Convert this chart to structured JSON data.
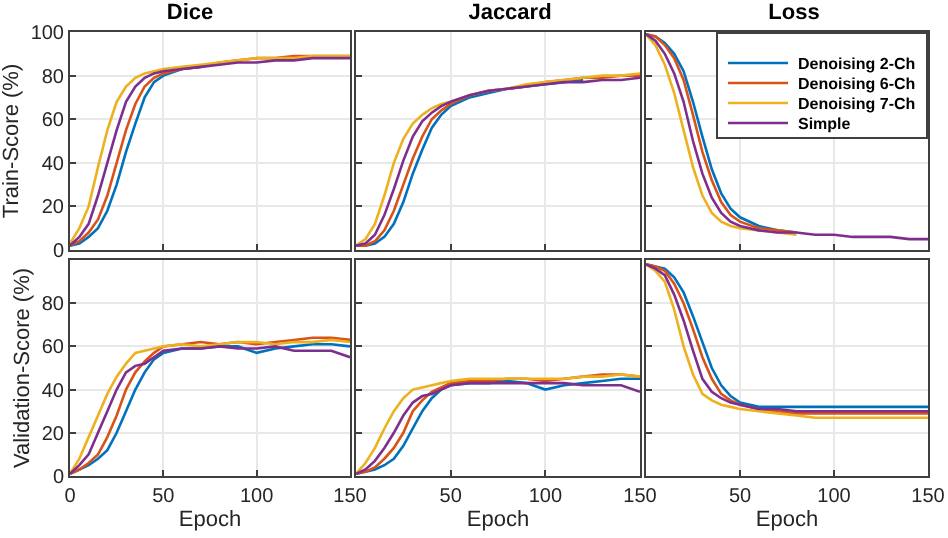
{
  "chart_data": [
    {
      "type": "line",
      "title": "Dice",
      "ylabel": "Train-Score (%)",
      "x": [
        0,
        5,
        10,
        15,
        20,
        25,
        30,
        35,
        40,
        45,
        50,
        60,
        70,
        80,
        90,
        100,
        110,
        120,
        130,
        140,
        150
      ],
      "xlim": [
        0,
        150
      ],
      "ylim": [
        0,
        100
      ],
      "xticks": [
        0,
        50,
        100,
        150
      ],
      "yticks": [
        0,
        20,
        40,
        60,
        80,
        100
      ],
      "tick_labels": "y",
      "grid": true,
      "legend": false,
      "marker": "none",
      "line_style": "solid",
      "series": [
        {
          "color": "#0072bd",
          "values": [
            2,
            3,
            6,
            10,
            18,
            30,
            45,
            58,
            70,
            77,
            80,
            83,
            84,
            null,
            null,
            null,
            null,
            null,
            null,
            null,
            null
          ]
        },
        {
          "color": "#d95319",
          "values": [
            2,
            4,
            8,
            14,
            25,
            40,
            55,
            67,
            75,
            79,
            81,
            83,
            84,
            86,
            87,
            88,
            88,
            89,
            89,
            89,
            89
          ]
        },
        {
          "color": "#edb120",
          "values": [
            3,
            10,
            20,
            38,
            55,
            68,
            75,
            79,
            81,
            82,
            83,
            84,
            85,
            86,
            87,
            88,
            88,
            88,
            89,
            89,
            89
          ]
        },
        {
          "color": "#7e2f8e",
          "values": [
            2,
            6,
            12,
            25,
            40,
            55,
            68,
            75,
            79,
            81,
            82,
            83,
            84,
            85,
            86,
            86,
            87,
            87,
            88,
            88,
            88
          ]
        }
      ]
    },
    {
      "type": "line",
      "title": "Jaccard",
      "x": [
        0,
        5,
        10,
        15,
        20,
        25,
        30,
        35,
        40,
        45,
        50,
        60,
        70,
        80,
        90,
        100,
        110,
        120,
        130,
        140,
        150
      ],
      "xlim": [
        0,
        150
      ],
      "ylim": [
        0,
        100
      ],
      "xticks": [
        0,
        50,
        100,
        150
      ],
      "yticks": [
        0,
        20,
        40,
        60,
        80,
        100
      ],
      "tick_labels": false,
      "grid": true,
      "legend": false,
      "marker": "none",
      "line_style": "solid",
      "series": [
        {
          "color": "#0072bd",
          "values": [
            2,
            2,
            3,
            6,
            12,
            22,
            35,
            46,
            56,
            62,
            66,
            70,
            72,
            74,
            75,
            76,
            77,
            78,
            null,
            null,
            null
          ]
        },
        {
          "color": "#d95319",
          "values": [
            2,
            2,
            4,
            9,
            18,
            30,
            42,
            52,
            60,
            64,
            67,
            71,
            73,
            74,
            75,
            77,
            78,
            79,
            79,
            80,
            80
          ]
        },
        {
          "color": "#edb120",
          "values": [
            2,
            5,
            12,
            25,
            40,
            51,
            58,
            62,
            65,
            67,
            68,
            71,
            73,
            74,
            76,
            77,
            78,
            79,
            80,
            80,
            81
          ]
        },
        {
          "color": "#7e2f8e",
          "values": [
            2,
            3,
            7,
            16,
            28,
            41,
            52,
            59,
            63,
            66,
            68,
            71,
            73,
            74,
            75,
            76,
            77,
            77,
            78,
            78,
            79
          ]
        }
      ]
    },
    {
      "type": "line",
      "title": "Loss",
      "x": [
        0,
        5,
        10,
        15,
        20,
        25,
        30,
        35,
        40,
        45,
        50,
        60,
        70,
        80,
        90,
        100,
        110,
        120,
        130,
        140,
        150
      ],
      "xlim": [
        0,
        150
      ],
      "ylim": [
        0,
        100
      ],
      "xticks": [
        0,
        50,
        100,
        150
      ],
      "yticks": [
        0,
        20,
        40,
        60,
        80,
        100
      ],
      "tick_labels": false,
      "grid": true,
      "legend": "top right",
      "marker": "none",
      "line_style": "solid",
      "series": [
        {
          "name": "Denoising 2-Ch",
          "color": "#0072bd",
          "values": [
            99,
            98,
            95,
            90,
            82,
            68,
            52,
            37,
            26,
            19,
            15,
            11,
            9,
            8,
            null,
            null,
            null,
            null,
            null,
            null,
            null
          ]
        },
        {
          "name": "Denoising 6-Ch",
          "color": "#d95319",
          "values": [
            99,
            98,
            94,
            88,
            78,
            62,
            45,
            32,
            22,
            16,
            13,
            10,
            9,
            8,
            null,
            null,
            null,
            null,
            null,
            null,
            null
          ]
        },
        {
          "name": "Denoising 7-Ch",
          "color": "#edb120",
          "values": [
            99,
            94,
            85,
            72,
            55,
            38,
            25,
            17,
            13,
            11,
            10,
            9,
            8,
            7,
            null,
            null,
            null,
            null,
            null,
            null,
            null
          ]
        },
        {
          "name": "Simple",
          "color": "#7e2f8e",
          "values": [
            99,
            96,
            90,
            81,
            68,
            50,
            35,
            24,
            17,
            13,
            11,
            9,
            8,
            8,
            7,
            7,
            6,
            6,
            6,
            5,
            5
          ]
        }
      ]
    },
    {
      "type": "line",
      "xlabel": "Epoch",
      "ylabel": "Validation-Score (%)",
      "x": [
        0,
        5,
        10,
        15,
        20,
        25,
        30,
        35,
        40,
        45,
        50,
        60,
        70,
        80,
        90,
        100,
        110,
        120,
        130,
        140,
        150
      ],
      "xlim": [
        0,
        150
      ],
      "ylim": [
        0,
        100
      ],
      "xticks": [
        0,
        50,
        100,
        150
      ],
      "yticks": [
        0,
        20,
        40,
        60,
        80,
        {
          "value": 100,
          "label": null
        }
      ],
      "grid": true,
      "legend": false,
      "marker": "none",
      "line_style": "solid",
      "series": [
        {
          "color": "#0072bd",
          "values": [
            1,
            3,
            5,
            8,
            12,
            20,
            30,
            40,
            48,
            54,
            57,
            59,
            59,
            60,
            60,
            57,
            59,
            60,
            61,
            61,
            60
          ]
        },
        {
          "color": "#d95319",
          "values": [
            1,
            3,
            6,
            10,
            18,
            28,
            40,
            48,
            53,
            57,
            60,
            61,
            62,
            61,
            62,
            61,
            62,
            63,
            64,
            64,
            63
          ]
        },
        {
          "color": "#edb120",
          "values": [
            1,
            8,
            18,
            28,
            38,
            46,
            52,
            57,
            58,
            59,
            60,
            61,
            60,
            61,
            62,
            62,
            61,
            62,
            62,
            63,
            62
          ]
        },
        {
          "color": "#7e2f8e",
          "values": [
            1,
            5,
            10,
            20,
            30,
            40,
            48,
            51,
            52,
            55,
            58,
            59,
            59,
            60,
            59,
            59,
            60,
            58,
            58,
            58,
            55
          ]
        }
      ]
    },
    {
      "type": "line",
      "xlabel": "Epoch",
      "x": [
        0,
        5,
        10,
        15,
        20,
        25,
        30,
        35,
        40,
        45,
        50,
        60,
        70,
        80,
        90,
        100,
        110,
        120,
        130,
        140,
        150
      ],
      "xlim": [
        0,
        150
      ],
      "ylim": [
        0,
        100
      ],
      "xticks": [
        {
          "value": 0,
          "label": null
        },
        50,
        100,
        150
      ],
      "yticks": [
        0,
        20,
        40,
        60,
        80,
        100
      ],
      "tick_labels": "x",
      "grid": true,
      "legend": false,
      "marker": "none",
      "line_style": "solid",
      "series": [
        {
          "color": "#0072bd",
          "values": [
            1,
            2,
            3,
            5,
            8,
            14,
            22,
            30,
            36,
            40,
            42,
            43,
            43,
            44,
            43,
            40,
            42,
            43,
            44,
            45,
            45
          ]
        },
        {
          "color": "#d95319",
          "values": [
            1,
            2,
            4,
            8,
            13,
            20,
            30,
            35,
            39,
            41,
            43,
            44,
            44,
            45,
            45,
            44,
            45,
            46,
            47,
            47,
            46
          ]
        },
        {
          "color": "#edb120",
          "values": [
            1,
            6,
            13,
            22,
            30,
            36,
            40,
            41,
            42,
            43,
            44,
            45,
            45,
            45,
            45,
            45,
            45,
            46,
            46,
            47,
            46
          ]
        },
        {
          "color": "#7e2f8e",
          "values": [
            1,
            3,
            7,
            13,
            20,
            28,
            34,
            37,
            38,
            40,
            42,
            43,
            43,
            43,
            43,
            43,
            43,
            42,
            42,
            42,
            39
          ]
        }
      ]
    },
    {
      "type": "line",
      "xlabel": "Epoch",
      "x": [
        0,
        5,
        10,
        15,
        20,
        25,
        30,
        35,
        40,
        45,
        50,
        60,
        70,
        80,
        90,
        100,
        110,
        120,
        130,
        140,
        150
      ],
      "xlim": [
        0,
        150
      ],
      "ylim": [
        0,
        100
      ],
      "xticks": [
        {
          "value": 0,
          "label": null
        },
        50,
        100,
        150
      ],
      "yticks": [
        0,
        20,
        40,
        60,
        80,
        100
      ],
      "tick_labels": "x",
      "grid": true,
      "legend": false,
      "marker": "none",
      "line_style": "solid",
      "series": [
        {
          "color": "#0072bd",
          "values": [
            98,
            97,
            96,
            92,
            85,
            74,
            62,
            50,
            42,
            37,
            34,
            32,
            32,
            32,
            32,
            32,
            32,
            32,
            32,
            32,
            32
          ]
        },
        {
          "color": "#d95319",
          "values": [
            98,
            97,
            95,
            89,
            80,
            68,
            55,
            45,
            38,
            35,
            33,
            31,
            30,
            29,
            29,
            29,
            29,
            29,
            29,
            29,
            29
          ]
        },
        {
          "color": "#edb120",
          "values": [
            98,
            95,
            90,
            77,
            60,
            47,
            38,
            35,
            33,
            32,
            31,
            30,
            29,
            28,
            27,
            27,
            27,
            27,
            27,
            27,
            27
          ]
        },
        {
          "color": "#7e2f8e",
          "values": [
            98,
            96,
            93,
            84,
            72,
            58,
            45,
            39,
            36,
            34,
            33,
            31,
            31,
            30,
            30,
            30,
            30,
            30,
            30,
            30,
            30
          ]
        }
      ]
    }
  ]
}
